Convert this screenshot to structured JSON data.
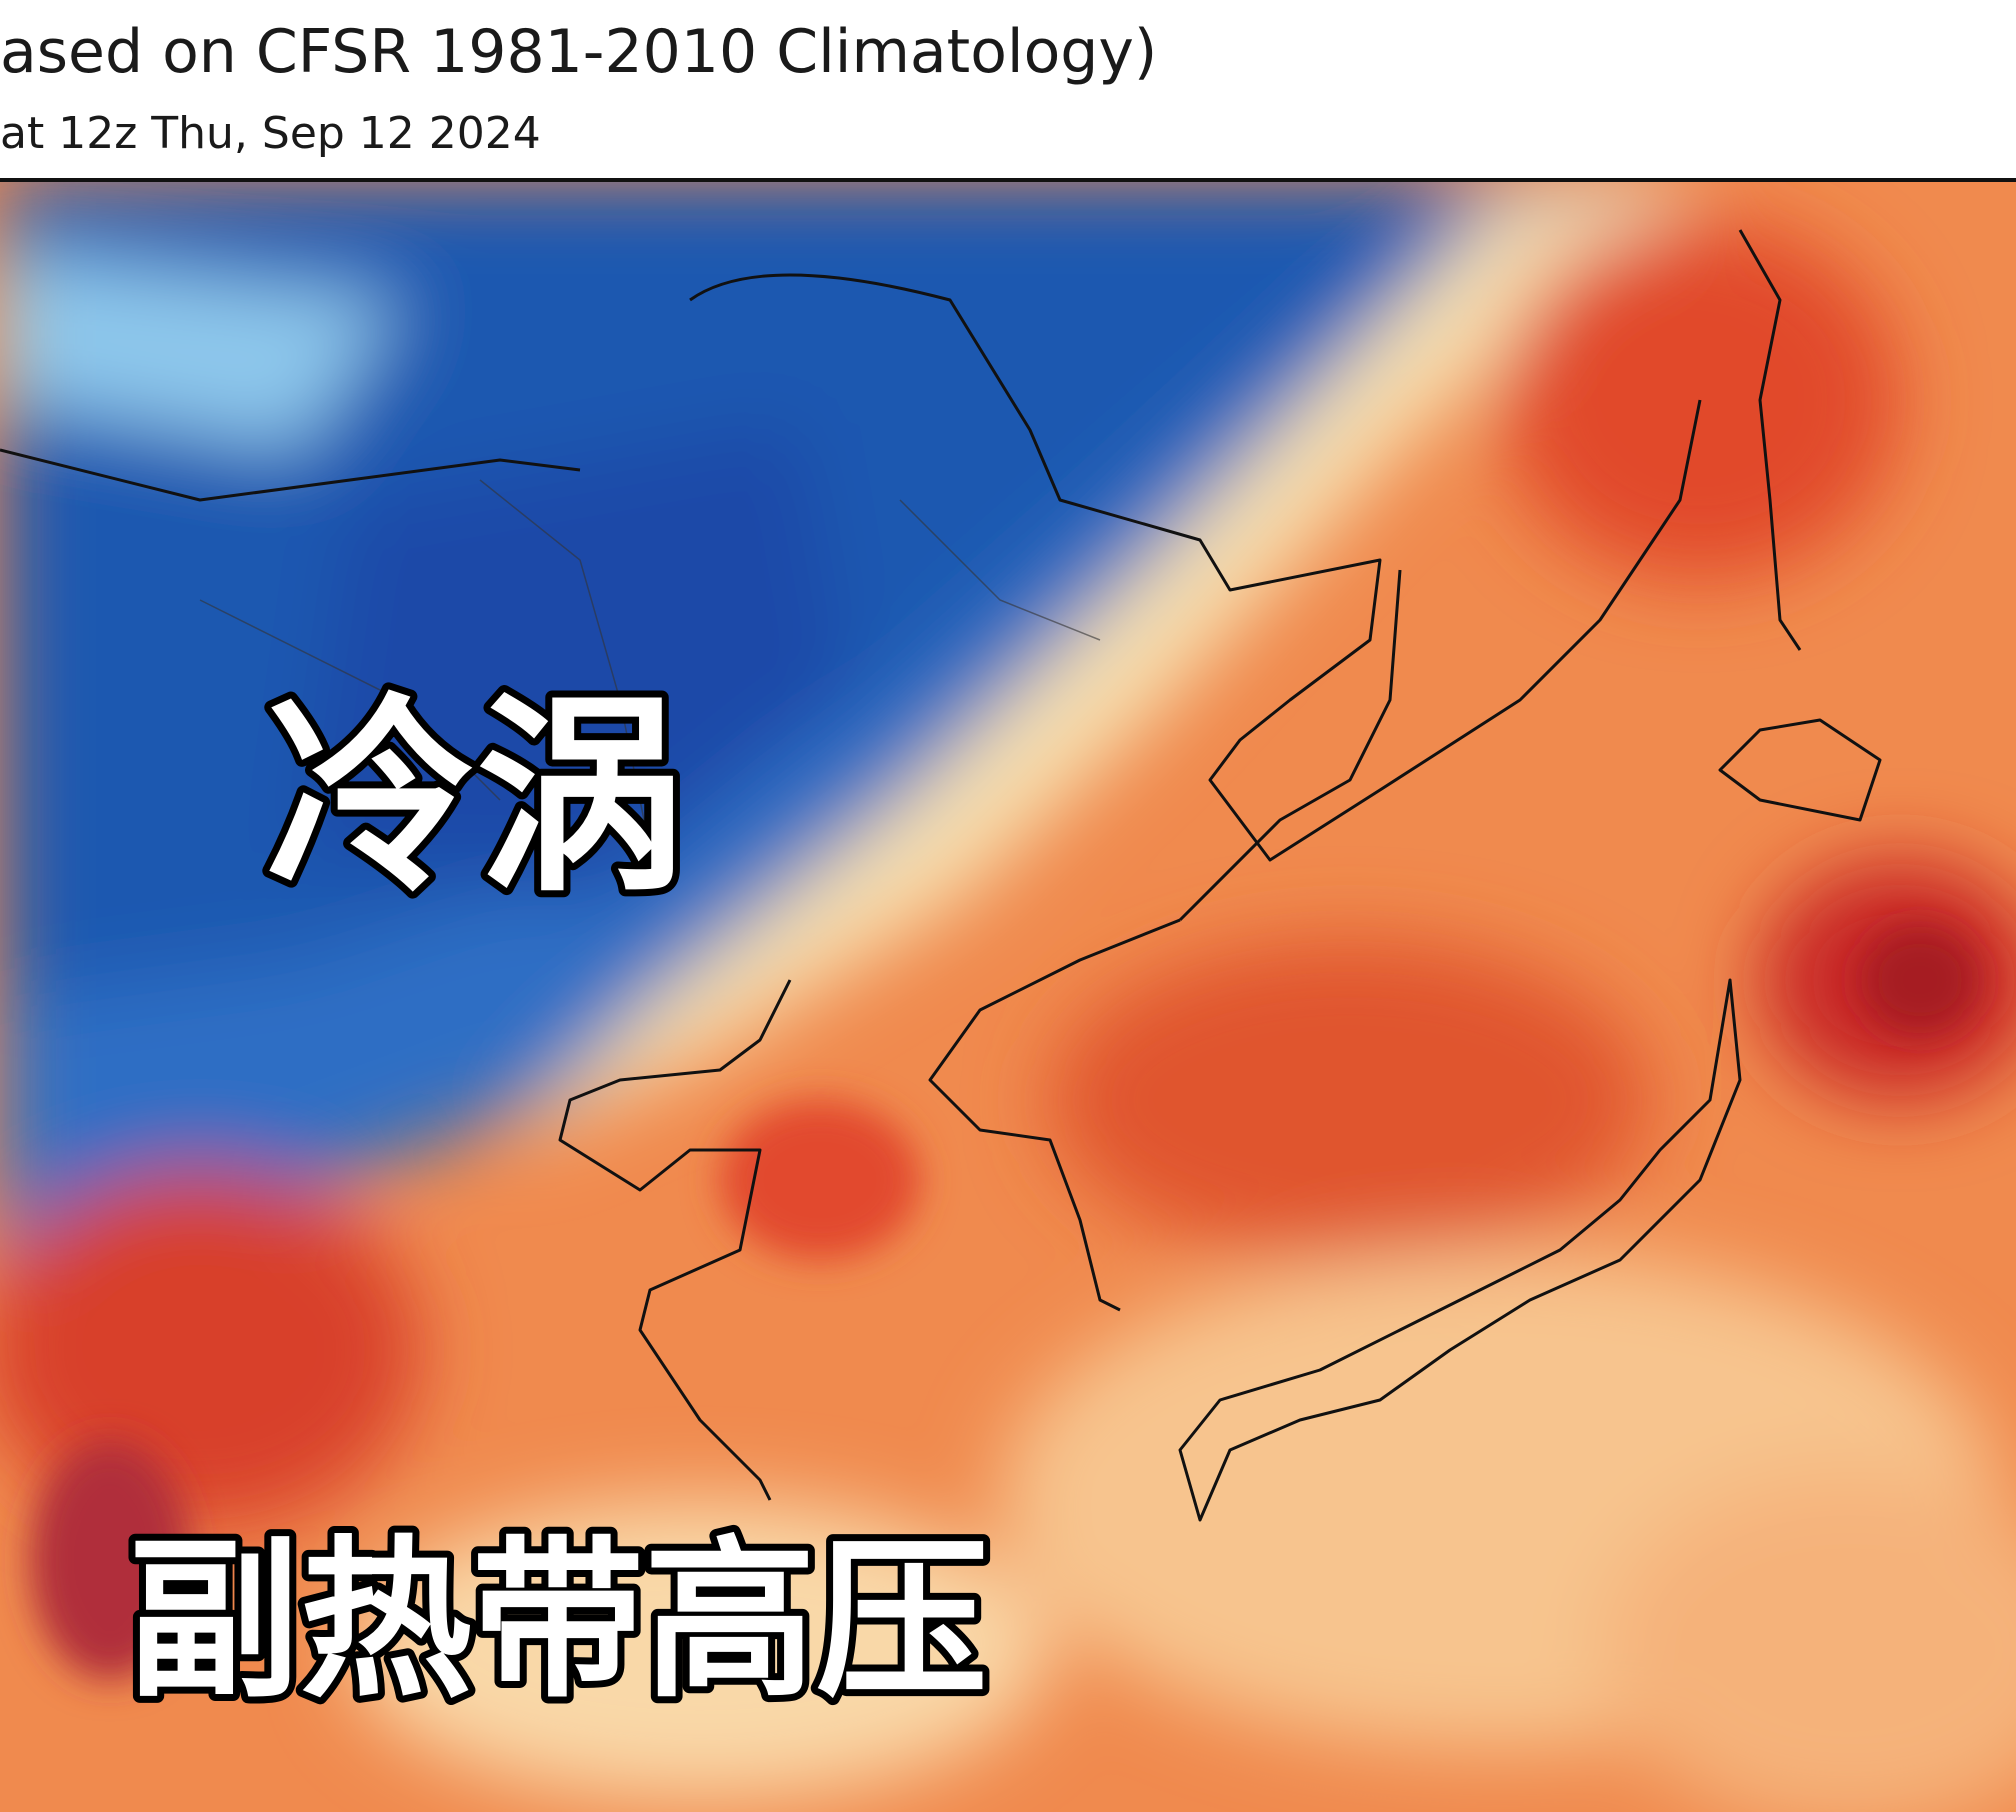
{
  "header": {
    "title": "ased on CFSR 1981-2010 Climatology)",
    "subtitle": "at 12z Thu, Sep 12 2024"
  },
  "labels": {
    "cold_vortex": "冷涡",
    "subtropical_high": "副热带高压"
  }
}
